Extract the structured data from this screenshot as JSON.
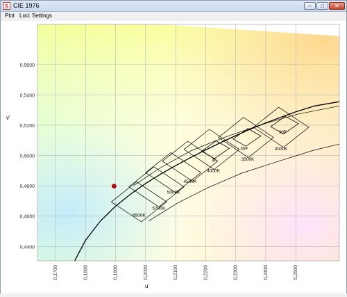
{
  "window": {
    "title": "CIE 1976",
    "app_icon": "app-logo-icon",
    "controls": {
      "minimize_icon": "minimize-icon",
      "maximize_icon": "maximize-icon",
      "close_icon": "close-icon"
    }
  },
  "menu": {
    "items": [
      "Plot",
      "Loci",
      "Settings"
    ]
  },
  "chart_data": {
    "type": "scatter",
    "xlabel": "u'",
    "ylabel": "v'",
    "xlim": [
      0.164,
      0.2645
    ],
    "ylim": [
      0.4305,
      0.5865
    ],
    "x_ticks": [
      "0,1700",
      "0,1800",
      "0,1900",
      "0,2000",
      "0,2100",
      "0,2200",
      "0,2300",
      "0,2400",
      "0,2500"
    ],
    "y_ticks": [
      "0,4400",
      "0,4600",
      "0,4800",
      "0,5000",
      "0,5200",
      "0,5400",
      "0,5600"
    ],
    "grid": true,
    "background": "CIE 1976 u'v' chromaticity colors",
    "planckian_locus": [
      [
        0.1764,
        0.4306
      ],
      [
        0.18,
        0.4441
      ],
      [
        0.185,
        0.4569
      ],
      [
        0.19,
        0.4665
      ],
      [
        0.195,
        0.4745
      ],
      [
        0.2,
        0.4815
      ],
      [
        0.205,
        0.4877
      ],
      [
        0.21,
        0.4933
      ],
      [
        0.215,
        0.4987
      ],
      [
        0.22,
        0.5037
      ],
      [
        0.225,
        0.5085
      ],
      [
        0.23,
        0.5131
      ],
      [
        0.235,
        0.5175
      ],
      [
        0.24,
        0.5215
      ],
      [
        0.245,
        0.5252
      ],
      [
        0.25,
        0.5288
      ],
      [
        0.2563,
        0.5327
      ],
      [
        0.2645,
        0.5355
      ]
    ],
    "bins": [
      {
        "label": "6500K",
        "center": [
          0.1978,
          0.4694
        ]
      },
      {
        "label": "5700K",
        "center": [
          0.2036,
          0.4793
        ]
      },
      {
        "label": "5000K",
        "center": [
          0.2092,
          0.4887
        ]
      },
      {
        "label": "4500K",
        "center": [
          0.2148,
          0.4962
        ]
      },
      {
        "label": "4000K",
        "center": [
          0.222,
          0.504
        ]
      },
      {
        "label": "3500K",
        "center": [
          0.2334,
          0.5119
        ]
      },
      {
        "label": "3000K",
        "center": [
          0.2451,
          0.5186
        ]
      }
    ],
    "label_positions": [
      {
        "label": "6500K",
        "at": [
          0.1978,
          0.4596
        ]
      },
      {
        "label": "5700K",
        "at": [
          0.2044,
          0.4642
        ]
      },
      {
        "label": "5000K",
        "at": [
          0.2093,
          0.4747
        ]
      },
      {
        "label": "4500K",
        "at": [
          0.2148,
          0.482
        ]
      },
      {
        "label": "4000K",
        "at": [
          0.2226,
          0.489
        ]
      },
      {
        "label": "3500K",
        "at": [
          0.234,
          0.4966
        ]
      },
      {
        "label": "3000K",
        "at": [
          0.2451,
          0.5035
        ]
      },
      {
        "label": "4F",
        "at": [
          0.2229,
          0.4958
        ]
      },
      {
        "label": "35F",
        "at": [
          0.2328,
          0.5036
        ]
      },
      {
        "label": "30F",
        "at": [
          0.2456,
          0.5145
        ]
      }
    ],
    "fixture_ellipses": [
      {
        "label": "4F",
        "center": [
          0.223,
          0.5038
        ]
      },
      {
        "label": "35F",
        "center": [
          0.2335,
          0.5119
        ]
      },
      {
        "label": "30F",
        "center": [
          0.246,
          0.52
        ]
      }
    ],
    "points": [
      {
        "u": 0.1895,
        "v": 0.4798,
        "color": "#c00000"
      }
    ]
  }
}
